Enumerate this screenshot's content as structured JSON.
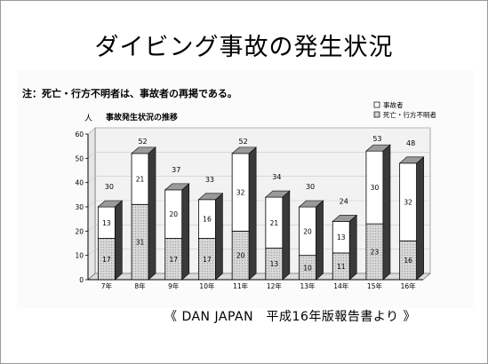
{
  "slide": {
    "title": "ダイビング事故の発生状況",
    "note": "注：死亡・行方不明者は、事故者の再掲である。",
    "source": "《 DAN JAPAN　平成16年版報告書より 》"
  },
  "colors": {
    "accident": "#ffffff",
    "death": "#d6d6d6",
    "top_face": "#9a9a9a",
    "side_face": "#3a3a3a",
    "wall": "#f2f2f2",
    "grid": "#c8c8c8"
  },
  "chart_data": {
    "type": "bar",
    "stacked": true,
    "three_d": true,
    "title": "事故発生状況の推移",
    "ylabel": "人",
    "xlabel": "",
    "ylim": [
      0,
      60
    ],
    "yticks": [
      0,
      10,
      20,
      30,
      40,
      50,
      60
    ],
    "grid": true,
    "legend_position": "top-right",
    "categories": [
      "7年",
      "8年",
      "9年",
      "10年",
      "11年",
      "12年",
      "13年",
      "14年",
      "15年",
      "16年"
    ],
    "series": [
      {
        "name": "死亡・行方不明者",
        "values": [
          17,
          31,
          17,
          17,
          20,
          13,
          10,
          11,
          23,
          16
        ]
      },
      {
        "name": "事故者",
        "values": [
          13,
          21,
          20,
          16,
          32,
          21,
          20,
          13,
          30,
          32
        ]
      }
    ],
    "totals": [
      30,
      52,
      37,
      33,
      52,
      34,
      30,
      24,
      53,
      48
    ]
  }
}
